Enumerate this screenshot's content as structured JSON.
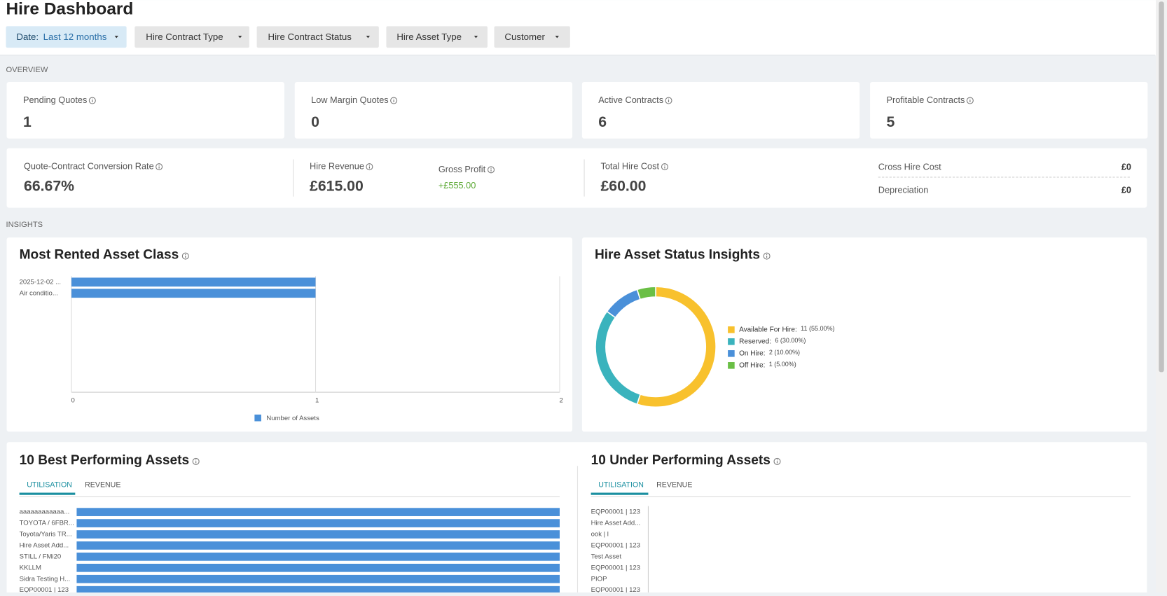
{
  "header": {
    "title": "Hire Dashboard"
  },
  "filters": {
    "date_label": "Date:",
    "date_value": "Last 12 months",
    "others": [
      "Hire Contract Type",
      "Hire Contract Status",
      "Hire Asset Type",
      "Customer"
    ]
  },
  "overview": {
    "heading": "OVERVIEW",
    "cards": [
      {
        "label": "Pending Quotes",
        "value": 1
      },
      {
        "label": "Low Margin Quotes",
        "value": 0
      },
      {
        "label": "Active Contracts",
        "value": 6
      },
      {
        "label": "Profitable Contracts",
        "value": 5
      }
    ],
    "conversion": {
      "label": "Quote-Contract Conversion Rate",
      "value": "66.67%"
    },
    "hire_revenue": {
      "label": "Hire Revenue",
      "value": "£615.00"
    },
    "gross_profit": {
      "label": "Gross Profit",
      "value": "+£555.00"
    },
    "total_hire_cost": {
      "label": "Total Hire Cost",
      "value": "£60.00"
    },
    "costs": [
      {
        "label": "Cross Hire Cost",
        "value": "£0"
      },
      {
        "label": "Depreciation",
        "value": "£0"
      }
    ]
  },
  "insights": {
    "heading": "INSIGHTS"
  },
  "chart_data": [
    {
      "type": "bar",
      "horizontal": true,
      "title": "Most Rented Asset Class",
      "categories": [
        "2025-12-02 ...",
        "Air conditio..."
      ],
      "series": [
        {
          "name": "Number of Assets",
          "color": "#4a90d9",
          "values": [
            1,
            1
          ]
        }
      ],
      "xlim": [
        0,
        2
      ],
      "xticks": [
        0,
        1,
        2
      ],
      "grid": true
    },
    {
      "type": "pie",
      "donut": true,
      "title": "Hire Asset Status Insights",
      "categories": [
        "Available For Hire:",
        "Reserved:",
        "On Hire:",
        "Off Hire:"
      ],
      "values": [
        11,
        6,
        2,
        1
      ],
      "value_labels": [
        "11 (55.00%)",
        "6 (30.00%)",
        "2 (10.00%)",
        "1 (5.00%)"
      ],
      "colors": [
        "#f8c12d",
        "#3ab3bd",
        "#4a90d9",
        "#6abf45"
      ]
    },
    {
      "type": "bar",
      "horizontal": true,
      "title": "10 Best Performing Assets",
      "tabs": [
        "UTILISATION",
        "REVENUE"
      ],
      "categories": [
        "aaaaaaaaaaaa...",
        "TOYOTA / 6FBR...",
        "Toyota/Yaris TR...",
        "Hire Asset Add...",
        "STILL / FMi20",
        "KKLLM",
        "Sidra Testing H...",
        "EQP00001 | 123"
      ],
      "values": [
        100,
        100,
        100,
        100,
        100,
        100,
        100,
        100
      ],
      "color": "#4a90d9"
    },
    {
      "type": "bar",
      "horizontal": true,
      "title": "10 Under Performing Assets",
      "tabs": [
        "UTILISATION",
        "REVENUE"
      ],
      "categories": [
        "EQP00001 | 123",
        "Hire Asset Add...",
        "ook | l",
        "EQP00001 | 123",
        "Test Asset",
        "EQP00001 | 123",
        "PIOP",
        "EQP00001 | 123"
      ],
      "values": [
        0,
        0,
        0,
        0,
        0,
        0,
        0,
        0
      ],
      "color": "#4a90d9"
    }
  ]
}
